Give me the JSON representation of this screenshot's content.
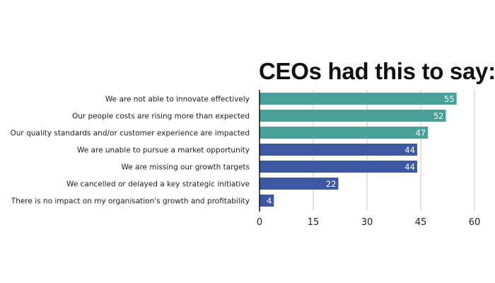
{
  "chart_data": {
    "type": "bar",
    "orientation": "horizontal",
    "title": "CEOs had this to say:",
    "xlabel": "",
    "ylabel": "",
    "xlim": [
      0,
      60
    ],
    "xticks": [
      0,
      15,
      30,
      45,
      60
    ],
    "grid": true,
    "categories": [
      "We are not able to innovate effectively",
      "Our people costs are rising more than expected",
      "Our quality standards and/or customer experience are impacted",
      "We are unable to pursue a market opportunity",
      "We are missing our growth targets",
      "We cancelled or delayed a key strategic initiative",
      "There is no impact on my organisation's growth and profitability"
    ],
    "values": [
      55,
      52,
      47,
      44,
      44,
      22,
      4
    ],
    "bar_colors": [
      "#4aa198",
      "#4aa198",
      "#4aa198",
      "#3d57a0",
      "#3d57a0",
      "#3d57a0",
      "#3d57a0"
    ],
    "data_labels": [
      "55",
      "52",
      "47",
      "44",
      "44",
      "22",
      "4"
    ]
  }
}
